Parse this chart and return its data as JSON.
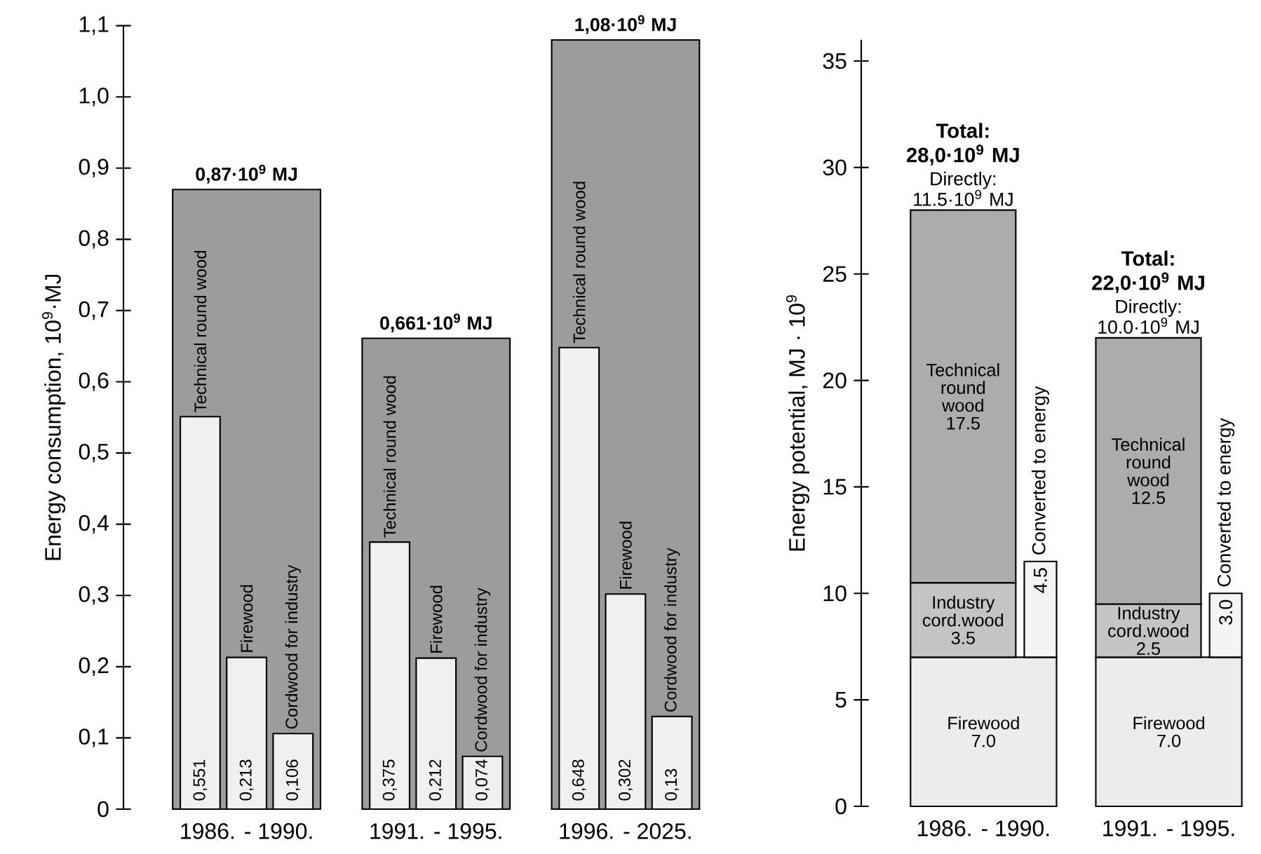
{
  "chart_data": [
    {
      "type": "bar",
      "ylabel": "Energy consumption, 10$^{9}$·MJ",
      "categories": [
        "1986. - 1990.",
        "1991. - 1995.",
        "1996. - 2025."
      ],
      "ylim": [
        0,
        1.1
      ],
      "yticks": [
        0,
        {
          "value": 0.1,
          "label": "0,1"
        },
        {
          "value": 0.2,
          "label": "0,2"
        },
        {
          "value": 0.3,
          "label": "0,3"
        },
        {
          "value": 0.4,
          "label": "0,4"
        },
        {
          "value": 0.5,
          "label": "0,5"
        },
        {
          "value": 0.6,
          "label": "0,6"
        },
        {
          "value": 0.7,
          "label": "0,7"
        },
        {
          "value": 0.8,
          "label": "0,8"
        },
        {
          "value": 0.9,
          "label": "0,9"
        },
        {
          "value": 1.0,
          "label": "1,0"
        },
        {
          "value": 1.1,
          "label": "1,1"
        }
      ],
      "series": [
        {
          "color": "#9c9c9c",
          "values": [
            0.87,
            0.661,
            1.08
          ],
          "value_labels": [
            "0,87·10$^{9}$ MJ",
            "0,661·10$^{9}$ MJ",
            "1,08·10$^{9}$ MJ"
          ]
        },
        {
          "name": "Technical round wood",
          "color": "#f0f0f0",
          "values": [
            0.551,
            0.375,
            0.648
          ],
          "value_labels": [
            "0,551",
            "0,375",
            "0,648"
          ]
        },
        {
          "name": "Firewood",
          "color": "#f0f0f0",
          "values": [
            0.213,
            0.212,
            0.302
          ],
          "value_labels": [
            "0,213",
            "0,212",
            "0,302"
          ]
        },
        {
          "name": "Cordwood for industry",
          "color": "#f0f0f0",
          "values": [
            0.106,
            0.074,
            0.13
          ],
          "value_labels": [
            "0,106",
            "0,074",
            "0,13"
          ]
        }
      ]
    },
    {
      "type": "bar",
      "ylabel": "Energy potential, MJ · 10$^{9}$",
      "categories": [
        "1986. - 1990.",
        "1991. - 1995."
      ],
      "ylim": [
        0,
        36
      ],
      "yticks": [
        0,
        5,
        10,
        15,
        20,
        25,
        30,
        35
      ],
      "series": [
        {
          "name": "Firewood",
          "color": "#ececec",
          "base": [
            0,
            0
          ],
          "values": [
            7.0,
            7.0
          ],
          "value_labels": [
            "7.0",
            "7.0"
          ]
        },
        {
          "name": "Industry cord.wood",
          "color": "#c4c4c4",
          "base": [
            7.0,
            7.0
          ],
          "values": [
            3.5,
            2.5
          ],
          "value_labels": [
            "3.5",
            "2.5"
          ]
        },
        {
          "name": "Technical round wood",
          "color": "#acacac",
          "base": [
            10.5,
            9.5
          ],
          "values": [
            17.5,
            12.5
          ],
          "value_labels": [
            "17.5",
            "12.5"
          ]
        },
        {
          "name": "Converted to energy",
          "color": "#f4f4f4",
          "base": [
            7.0,
            7.0
          ],
          "values": [
            4.5,
            3.0
          ],
          "value_labels": [
            "4.5",
            "3.0"
          ]
        }
      ],
      "totals": [
        "Total: 28,0·10$^{9}$ MJ",
        "Total: 22,0·10$^{9}$ MJ"
      ],
      "annotations": [
        "Directly: 11.5·10$^{9}$ MJ",
        "Directly: 10.0·10$^{9}$ MJ"
      ]
    }
  ]
}
